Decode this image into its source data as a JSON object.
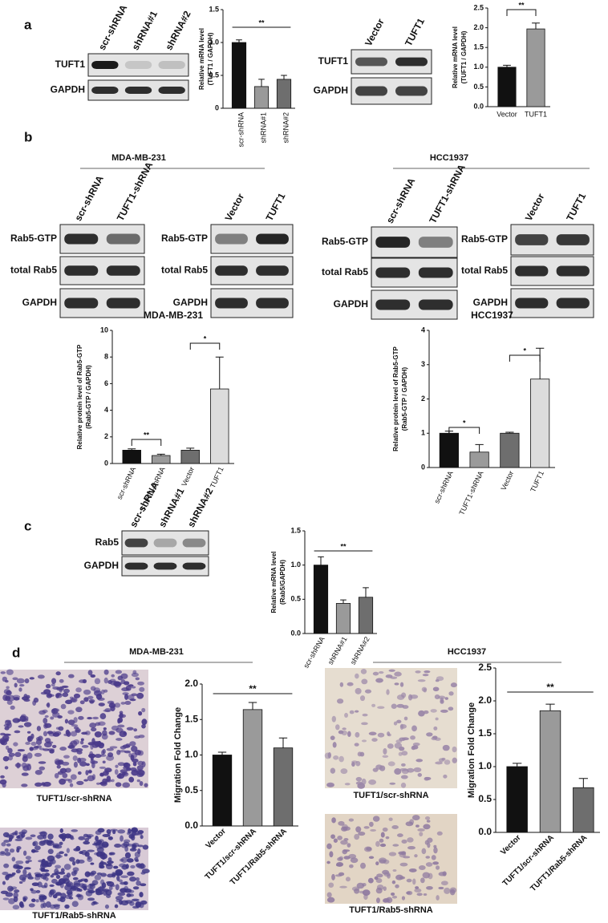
{
  "panel_labels": [
    "a",
    "b",
    "c",
    "d"
  ],
  "group_titles": [
    "MDA-MB-231",
    "HCC1937",
    "MDA-MB-231",
    "HCC1937"
  ],
  "blots": [
    {
      "lanes": [
        "scr-shRNA",
        "shRNA#1",
        "shRNA#2"
      ],
      "rows": [
        "TUFT1",
        "GAPDH"
      ]
    },
    {
      "lanes": [
        "Vector",
        "TUFT1"
      ],
      "rows": [
        "TUFT1",
        "GAPDH"
      ]
    },
    {
      "lanes": [
        "scr-shRNA",
        "TUFT1-shRNA"
      ],
      "rows": [
        "Rab5-GTP",
        "total Rab5",
        "GAPDH"
      ]
    },
    {
      "lanes": [
        "Vector",
        "TUFT1"
      ],
      "rows": [
        "Rab5-GTP",
        "total Rab5",
        "GAPDH"
      ]
    },
    {
      "lanes": [
        "scr-shRNA",
        "TUFT1-shRNA"
      ],
      "rows": [
        "Rab5-GTP",
        "total Rab5",
        "GAPDH"
      ]
    },
    {
      "lanes": [
        "Vector",
        "TUFT1"
      ],
      "rows": [
        "Rab5-GTP",
        "total Rab5",
        "GAPDH"
      ]
    },
    {
      "lanes": [
        "scr-shRNA",
        "shRNA#1",
        "shRNA#2"
      ],
      "rows": [
        "Rab5",
        "GAPDH"
      ]
    }
  ],
  "micrographs": [
    "TUFT1/scr-shRNA",
    "TUFT1/Rab5-shRNA",
    "TUFT1/scr-shRNA",
    "TUFT1/Rab5-shRNA"
  ],
  "chart_data": [
    {
      "type": "bar",
      "y_label": [
        "Relative mRNA level",
        "(TUFT1 / GAPDH)"
      ],
      "categories": [
        "scr-shRNA",
        "shRNA#1",
        "shRNA#2"
      ],
      "values": [
        1.0,
        0.33,
        0.44
      ],
      "errors": [
        0.04,
        0.11,
        0.06
      ],
      "colors": [
        "#111111",
        "#9a9a9a",
        "#6e6e6e"
      ],
      "ylim": [
        0,
        1.5
      ],
      "yticks": [
        0,
        0.5,
        {
          "value": 1,
          "label": "1.0"
        },
        1.5
      ],
      "annotations": [
        "**"
      ]
    },
    {
      "type": "bar",
      "y_label": [
        "Relative mRNA level",
        "(TUFT1 / GAPDH)"
      ],
      "categories": [
        "Vector",
        "TUFT1"
      ],
      "values": [
        1.0,
        1.97
      ],
      "errors": [
        0.05,
        0.15
      ],
      "colors": [
        "#111111",
        "#9a9a9a"
      ],
      "ylim": [
        0,
        2.5
      ],
      "yticks": [
        {
          "value": 0,
          "label": "0.0"
        },
        0.5,
        {
          "value": 1,
          "label": "1.0"
        },
        1.5,
        {
          "value": 2,
          "label": "2.0"
        },
        2.5
      ],
      "annotations": [
        "**"
      ]
    },
    {
      "type": "bar",
      "title": "MDA-MB-231",
      "y_label": [
        "Relative protein level of Rab5-GTP",
        "(Rab5-GTP / GAPDH)"
      ],
      "categories": [
        "scr-shRNA",
        "TUFT1-shRNA",
        "Vector",
        "TUFT1"
      ],
      "values": [
        1.0,
        0.6,
        1.0,
        5.6
      ],
      "errors": [
        0.1,
        0.1,
        0.15,
        2.4
      ],
      "colors": [
        "#111111",
        "#9a9a9a",
        "#6e6e6e",
        "#dcdcdc"
      ],
      "ylim": [
        0,
        10
      ],
      "yticks": [
        0,
        2,
        4,
        6,
        8,
        10
      ],
      "annotations": [
        "**",
        "*"
      ]
    },
    {
      "type": "bar",
      "title": "HCC1937",
      "y_label": [
        "Relative protein level of Rab5-GTP",
        "(Rab5-GTP / GAPDH)"
      ],
      "categories": [
        "scr-shRNA",
        "TUFT1-shRNA",
        "Vector",
        "TUFT1"
      ],
      "values": [
        1.0,
        0.45,
        1.0,
        2.58
      ],
      "errors": [
        0.06,
        0.22,
        0.03,
        0.9
      ],
      "colors": [
        "#111111",
        "#9a9a9a",
        "#6e6e6e",
        "#dcdcdc"
      ],
      "ylim": [
        0,
        4
      ],
      "yticks": [
        0,
        1,
        2,
        3,
        4
      ],
      "annotations": [
        "*",
        "*"
      ]
    },
    {
      "type": "bar",
      "y_label": [
        "Relative mRNA level",
        "(Rab5/GAPDH)"
      ],
      "categories": [
        "scr-shRNA",
        "shRNA#1",
        "shRNA#2"
      ],
      "values": [
        1.0,
        0.44,
        0.53
      ],
      "errors": [
        0.12,
        0.05,
        0.14
      ],
      "colors": [
        "#111111",
        "#9a9a9a",
        "#6e6e6e"
      ],
      "ylim": [
        0,
        1.5
      ],
      "yticks": [
        {
          "value": 0,
          "label": "0.0"
        },
        0.5,
        {
          "value": 1,
          "label": "1.0"
        },
        1.5
      ],
      "annotations": [
        "**"
      ]
    },
    {
      "type": "bar",
      "y_label": [
        "Migration Fold Change"
      ],
      "categories": [
        "Vector",
        "TUFT1/scr-shRNA",
        "TUFT1/Rab5-shRNA"
      ],
      "values": [
        1.0,
        1.64,
        1.1
      ],
      "errors": [
        0.04,
        0.1,
        0.14
      ],
      "colors": [
        "#111111",
        "#9a9a9a",
        "#6e6e6e"
      ],
      "ylim": [
        0,
        2
      ],
      "yticks": [
        {
          "value": 0,
          "label": "0.0"
        },
        0.5,
        {
          "value": 1,
          "label": "1.0"
        },
        1.5,
        {
          "value": 2,
          "label": "2.0"
        }
      ],
      "annotations": [
        "**"
      ]
    },
    {
      "type": "bar",
      "y_label": [
        "Migration Fold Change"
      ],
      "categories": [
        "Vector",
        "TUFT1/scr-shRNA",
        "TUFT1/Rab5-shRNA"
      ],
      "values": [
        1.0,
        1.85,
        0.68
      ],
      "errors": [
        0.05,
        0.1,
        0.14
      ],
      "colors": [
        "#111111",
        "#9a9a9a",
        "#6e6e6e"
      ],
      "ylim": [
        0,
        2.5
      ],
      "yticks": [
        {
          "value": 0,
          "label": "0.0"
        },
        0.5,
        {
          "value": 1,
          "label": "1.0"
        },
        1.5,
        {
          "value": 2,
          "label": "2.0"
        },
        2.5
      ],
      "annotations": [
        "**"
      ]
    }
  ]
}
